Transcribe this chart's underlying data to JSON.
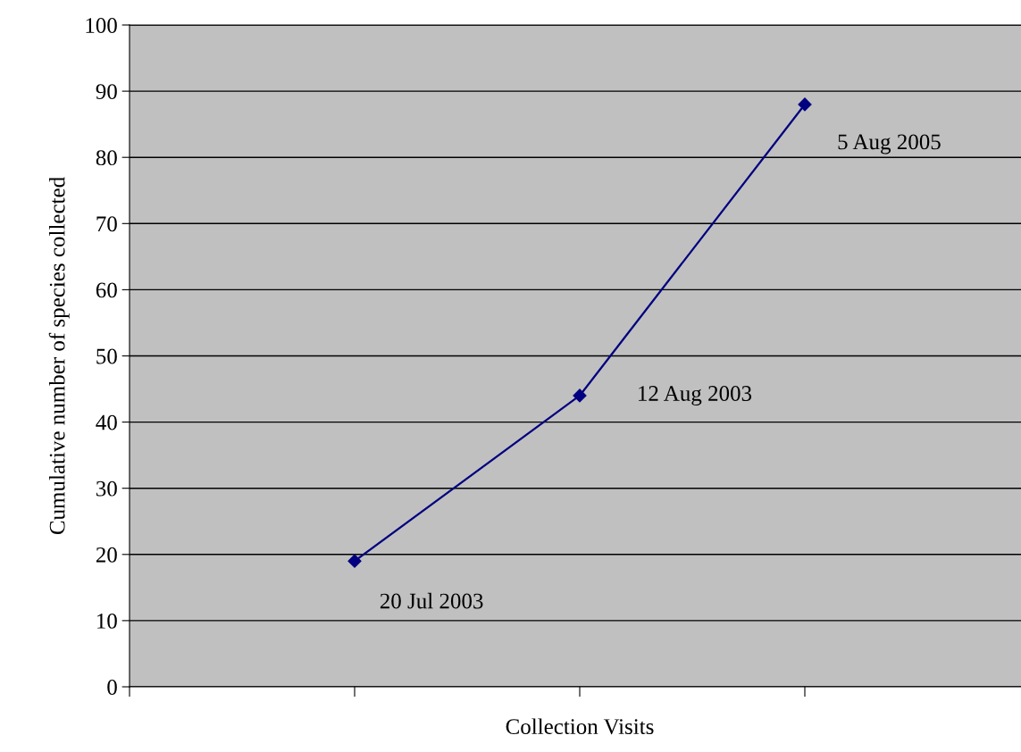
{
  "chart_data": {
    "type": "line",
    "xlabel": "Collection Visits",
    "ylabel": "Cumulative number of species collected",
    "categories": [
      null,
      null,
      null
    ],
    "series": [
      {
        "color": "#000080",
        "values": [
          19,
          44,
          88
        ]
      }
    ],
    "marker": "diamond",
    "line_style": "solid",
    "ylim": [
      0,
      100
    ],
    "yticks": [
      0,
      10,
      20,
      30,
      40,
      50,
      60,
      70,
      80,
      90,
      100
    ],
    "grid": "y",
    "legend": false,
    "annotations": [
      "20 Jul 2003",
      "12 Aug 2003",
      "5 Aug 2005"
    ]
  }
}
